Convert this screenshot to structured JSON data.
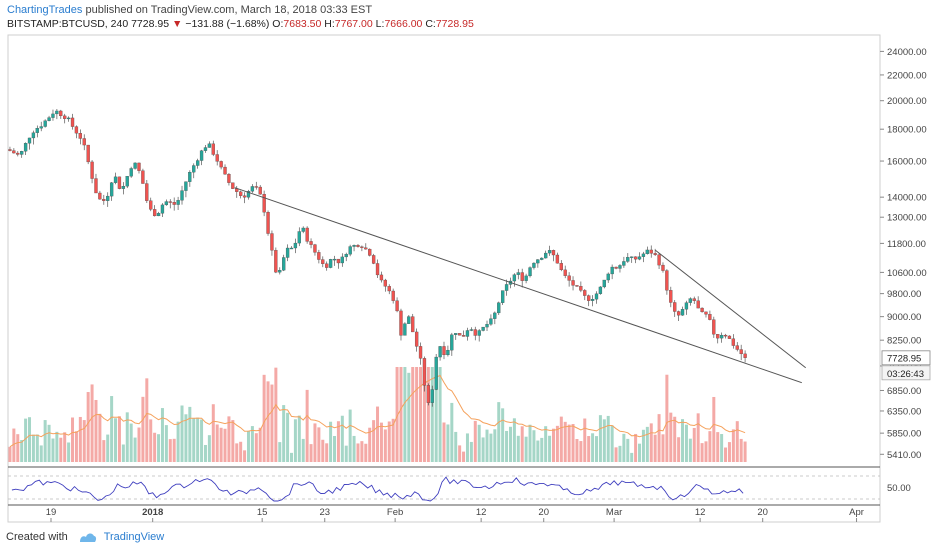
{
  "header": {
    "author": "ChartingTrades",
    "published_text": "published on TradingView.com, March 18, 2018 03:33 EST",
    "symbol": "BITSTAMP:BTCUSD, 240",
    "last": "7728.95",
    "change_arrow": "▼",
    "change": "−131.88 (−1.68%)",
    "o_label": "O:",
    "o_value": "7683.50",
    "h_label": "H:",
    "h_value": "7767.00",
    "l_label": "L:",
    "l_value": "7666.00",
    "c_label": "C:",
    "c_value": "7728.95"
  },
  "footer": {
    "created_with": "Created with",
    "brand": "TradingView"
  },
  "colors": {
    "up": "#26a69a",
    "down": "#ef5350",
    "vol_up": "#a5d6c7",
    "vol_down": "#f4a9a6",
    "vol_ma": "#f5a25d",
    "rsi": "#3f3fbf",
    "trendline": "#555555"
  },
  "chart_data": {
    "type": "candlestick",
    "symbol": "BITSTAMP:BTCUSD",
    "interval": "240",
    "scale": "log",
    "ylim": [
      5200,
      25500
    ],
    "price_ticks": [
      "24000.00",
      "22000.00",
      "20000.00",
      "18000.00",
      "16000.00",
      "14000.00",
      "13000.00",
      "11800.00",
      "10600.00",
      "9800.00",
      "9000.00",
      "8250.00",
      "7500.00",
      "6850.00",
      "6350.00",
      "5850.00",
      "5410.00"
    ],
    "last_price_label": "7728.95",
    "countdown_label": "03:26:43",
    "x_ticks": [
      {
        "label": "19",
        "day": 0
      },
      {
        "label": "2018",
        "day": 13
      },
      {
        "label": "15",
        "day": 27
      },
      {
        "label": "23",
        "day": 35
      },
      {
        "label": "Feb",
        "day": 44
      },
      {
        "label": "12",
        "day": 55
      },
      {
        "label": "20",
        "day": 63
      },
      {
        "label": "Mar",
        "day": 72
      },
      {
        "label": "12",
        "day": 83
      },
      {
        "label": "20",
        "day": 91
      },
      {
        "label": "Apr",
        "day": 103
      }
    ],
    "x_range_days": [
      -5.5,
      106
    ],
    "price_path": [
      [
        -5.5,
        16700
      ],
      [
        -4,
        16300
      ],
      [
        -2.5,
        17800
      ],
      [
        -1,
        18400
      ],
      [
        0.5,
        19300
      ],
      [
        2,
        18800
      ],
      [
        3,
        18000
      ],
      [
        4,
        17300
      ],
      [
        5,
        15500
      ],
      [
        6,
        13900
      ],
      [
        7,
        13800
      ],
      [
        8,
        15300
      ],
      [
        9,
        14300
      ],
      [
        10.5,
        16000
      ],
      [
        11.5,
        15200
      ],
      [
        12.5,
        13400
      ],
      [
        13.5,
        13100
      ],
      [
        14.5,
        13800
      ],
      [
        16,
        13600
      ],
      [
        17.5,
        15100
      ],
      [
        19,
        16400
      ],
      [
        20,
        17100
      ],
      [
        21,
        16300
      ],
      [
        22,
        15300
      ],
      [
        23,
        14600
      ],
      [
        24.5,
        14000
      ],
      [
        26,
        14600
      ],
      [
        27,
        13900
      ],
      [
        28,
        11800
      ],
      [
        29,
        10300
      ],
      [
        30,
        11500
      ],
      [
        31,
        11600
      ],
      [
        32,
        12600
      ],
      [
        33,
        11800
      ],
      [
        34,
        11300
      ],
      [
        35,
        10800
      ],
      [
        36,
        11200
      ],
      [
        37,
        11000
      ],
      [
        38,
        11600
      ],
      [
        39.5,
        11800
      ],
      [
        41,
        11300
      ],
      [
        42,
        10300
      ],
      [
        43,
        10000
      ],
      [
        44,
        9500
      ],
      [
        44.8,
        8400
      ],
      [
        45.6,
        9100
      ],
      [
        46.5,
        8300
      ],
      [
        47.3,
        7600
      ],
      [
        48,
        6700
      ],
      [
        48.5,
        6300
      ],
      [
        49,
        7600
      ],
      [
        49.7,
        8100
      ],
      [
        50.5,
        7800
      ],
      [
        51.5,
        8600
      ],
      [
        52.5,
        8300
      ],
      [
        53.5,
        8700
      ],
      [
        54.5,
        8400
      ],
      [
        55.5,
        8700
      ],
      [
        56.5,
        8900
      ],
      [
        57.5,
        9700
      ],
      [
        58.5,
        10200
      ],
      [
        59.5,
        10600
      ],
      [
        60.5,
        10300
      ],
      [
        61.5,
        11000
      ],
      [
        62.5,
        11200
      ],
      [
        63.5,
        11500
      ],
      [
        64.5,
        11200
      ],
      [
        65.5,
        10500
      ],
      [
        66.5,
        10200
      ],
      [
        67.5,
        9900
      ],
      [
        68.5,
        9600
      ],
      [
        69.5,
        9700
      ],
      [
        70.5,
        10100
      ],
      [
        71.5,
        10800
      ],
      [
        72.5,
        10800
      ],
      [
        73.5,
        11200
      ],
      [
        74.5,
        11100
      ],
      [
        75.5,
        11300
      ],
      [
        76.5,
        11500
      ],
      [
        77.5,
        11200
      ],
      [
        78.5,
        10400
      ],
      [
        79,
        9600
      ],
      [
        80,
        8950
      ],
      [
        81,
        9300
      ],
      [
        82,
        9700
      ],
      [
        83,
        9100
      ],
      [
        84,
        9000
      ],
      [
        85,
        8300
      ],
      [
        86,
        8500
      ],
      [
        87,
        8200
      ],
      [
        88,
        7900
      ],
      [
        88.8,
        7728.95
      ]
    ],
    "trendlines": [
      {
        "from": [
          23.5,
          14500
        ],
        "to": [
          96,
          7050
        ]
      },
      {
        "from": [
          77.3,
          11500
        ],
        "to": [
          96.5,
          7450
        ]
      }
    ],
    "indicators": {
      "volume": {
        "ma_color": "#f5a25d"
      },
      "rsi": {
        "level_label": "50.00"
      }
    }
  }
}
